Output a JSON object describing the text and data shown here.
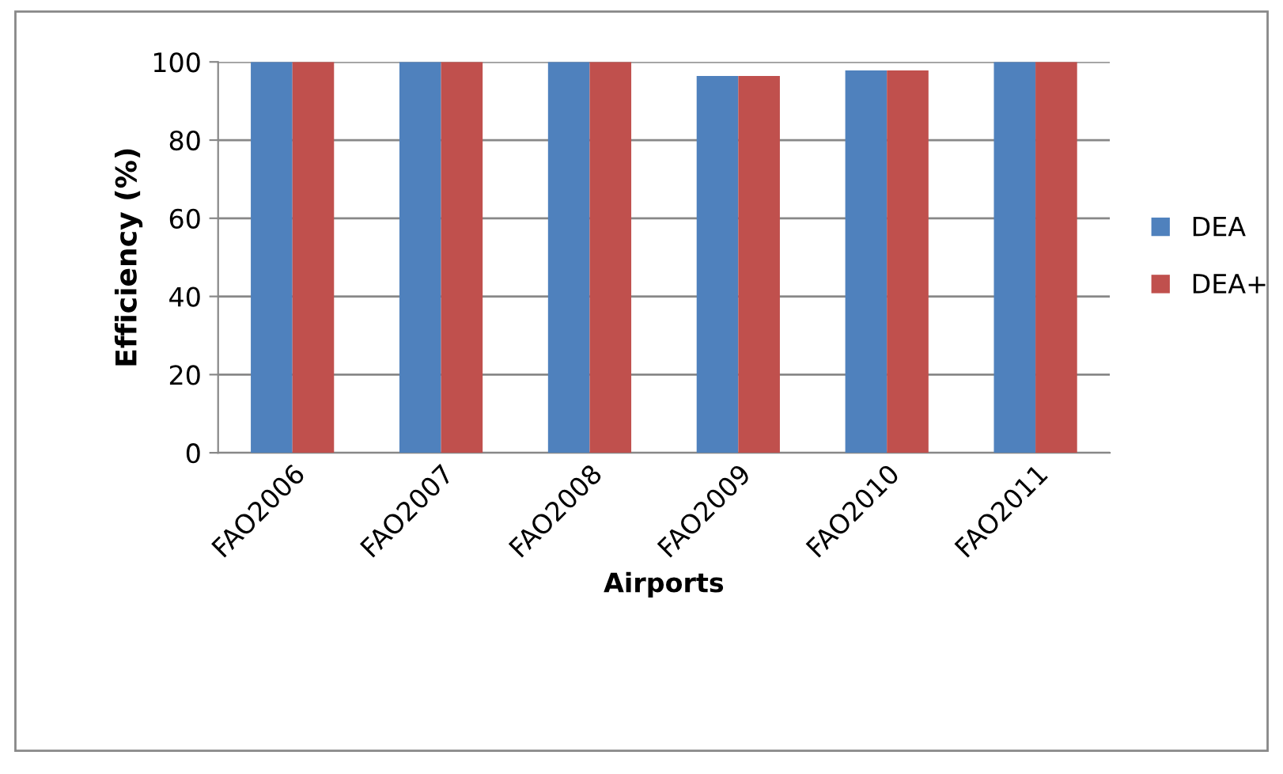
{
  "chart_data": {
    "type": "bar",
    "xlabel": "Airports",
    "ylabel": "Efficiency (%)",
    "categories": [
      "FAO2006",
      "FAO2007",
      "FAO2008",
      "FAO2009",
      "FAO2010",
      "FAO2011"
    ],
    "series": [
      {
        "name": "DEA",
        "color": "#4f81bd",
        "values": [
          100,
          100,
          100,
          96.4,
          97.8,
          100
        ]
      },
      {
        "name": "DEA+",
        "color": "#c0504d",
        "values": [
          100,
          100,
          100,
          96.4,
          97.8,
          100
        ]
      }
    ],
    "ylim": [
      0,
      100
    ],
    "yticks": [
      0,
      20,
      40,
      60,
      80,
      100
    ],
    "grid": "y",
    "legend": "right"
  }
}
